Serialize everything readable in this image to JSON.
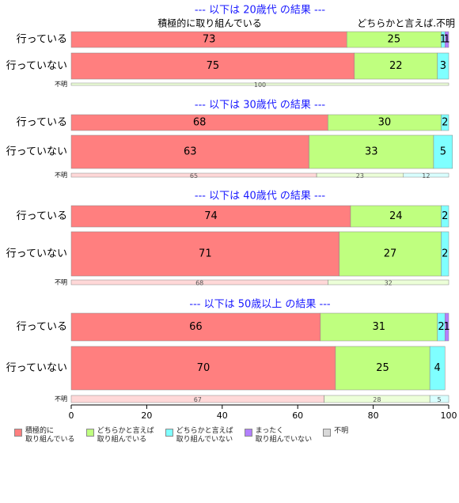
{
  "chart_data": [
    {
      "type": "stacked-bar",
      "title": "--- 以下は 20歳代 の結果 ---",
      "column_labels": [
        "積極的に取り組んでいる",
        "どちらかと言えば...",
        "不明"
      ],
      "categories": [
        "行っている",
        "行っていない",
        "不明"
      ],
      "series": [
        {
          "values": [
            73,
            75,
            null
          ]
        },
        {
          "values": [
            25,
            22,
            100
          ]
        },
        {
          "values": [
            1,
            3,
            null
          ]
        },
        {
          "values": [
            1,
            null,
            null
          ]
        },
        {
          "values": [
            null,
            null,
            null
          ]
        }
      ]
    },
    {
      "type": "stacked-bar",
      "title": "--- 以下は 30歳代 の結果 ---",
      "categories": [
        "行っている",
        "行っていない",
        "不明"
      ],
      "series": [
        {
          "values": [
            68,
            63,
            65
          ]
        },
        {
          "values": [
            30,
            33,
            23
          ]
        },
        {
          "values": [
            2,
            5,
            12
          ]
        },
        {
          "values": [
            null,
            null,
            null
          ]
        },
        {
          "values": [
            null,
            null,
            null
          ]
        }
      ]
    },
    {
      "type": "stacked-bar",
      "title": "--- 以下は 40歳代 の結果 ---",
      "categories": [
        "行っている",
        "行っていない",
        "不明"
      ],
      "series": [
        {
          "values": [
            74,
            71,
            68
          ]
        },
        {
          "values": [
            24,
            27,
            32
          ]
        },
        {
          "values": [
            2,
            2,
            null
          ]
        },
        {
          "values": [
            null,
            null,
            null
          ]
        },
        {
          "values": [
            null,
            null,
            null
          ]
        }
      ]
    },
    {
      "type": "stacked-bar",
      "title": "--- 以下は 50歳以上 の結果 ---",
      "categories": [
        "行っている",
        "行っていない",
        "不明"
      ],
      "series": [
        {
          "values": [
            66,
            70,
            67
          ]
        },
        {
          "values": [
            31,
            25,
            28
          ]
        },
        {
          "values": [
            2,
            4,
            5
          ]
        },
        {
          "values": [
            1,
            null,
            null
          ]
        },
        {
          "values": [
            null,
            null,
            null
          ]
        }
      ]
    }
  ],
  "legend": {
    "names": [
      "積極的に\n取り組んでいる",
      "どちらかと言えば\n取り組んでいる",
      "どちらかと言えば\n取り組んでいない",
      "まったく\n取り組んでいない",
      "不明"
    ],
    "colors": [
      "#ff7f7f",
      "#bfff7f",
      "#7fffff",
      "#b27fff",
      "#d9d9d9"
    ]
  },
  "x_axis": {
    "xlim": [
      0,
      100
    ],
    "xticks": [
      0,
      20,
      40,
      60,
      80,
      100
    ]
  }
}
